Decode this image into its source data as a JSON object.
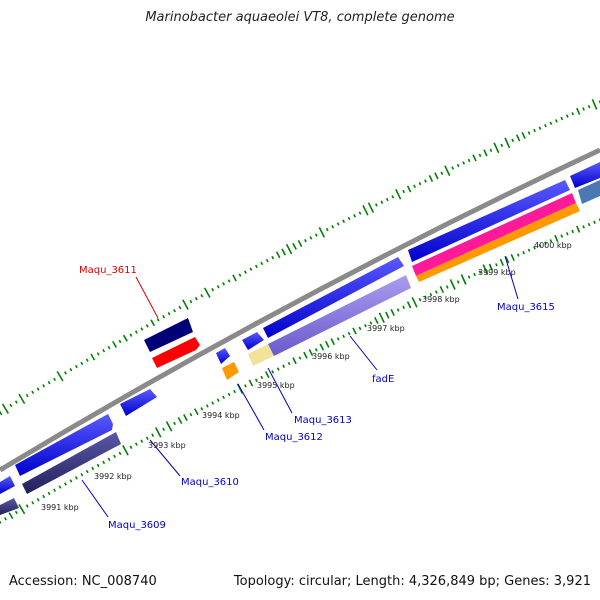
{
  "title": "Marinobacter aquaeolei VT8, complete genome",
  "footer": {
    "accession": "Accession: NC_008740",
    "summary": "Topology: circular; Length: 4,326,849 bp; Genes: 3,921"
  },
  "ticks": [
    "3991 kbp",
    "3992 kbp",
    "3993 kbp",
    "3994 kbp",
    "3995 kbp",
    "3996 kbp",
    "3997 kbp",
    "3998 kbp",
    "3999 kbp",
    "4000 kbp"
  ],
  "gene_labels": [
    {
      "name": "Maqu_3611",
      "color": "#dd0000"
    },
    {
      "name": "Maqu_3615",
      "color": "#0000cc"
    },
    {
      "name": "fadE",
      "color": "#0000cc"
    },
    {
      "name": "Maqu_3613",
      "color": "#0000cc"
    },
    {
      "name": "Maqu_3612",
      "color": "#0000cc"
    },
    {
      "name": "Maqu_3610",
      "color": "#0000cc"
    },
    {
      "name": "Maqu_3609",
      "color": "#0000cc"
    }
  ],
  "colors": {
    "backbone": "#8a8a8a",
    "forward_cds": "#0000ee",
    "cog_purple": "#8070d8",
    "cog_dark": "#2a2870",
    "pink": "#ff1a9a",
    "orange": "#ff9900",
    "red": "#ff0000",
    "navy": "#000077",
    "yellow": "#f2e29a",
    "steel": "#4a78b0",
    "gc_ticks": "#008000"
  }
}
